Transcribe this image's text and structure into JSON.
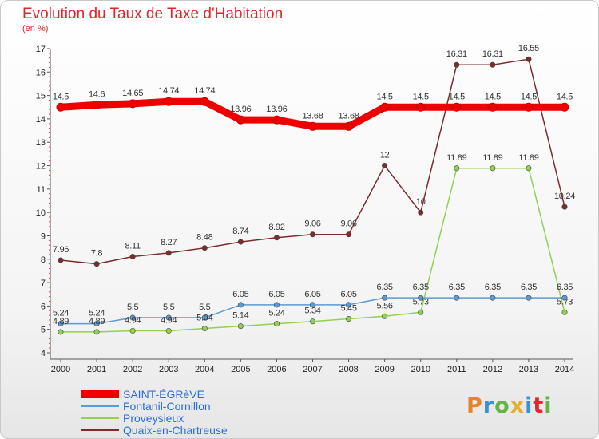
{
  "title": "Evolution du Taux de Taxe d'Habitation",
  "subtitle": "(en %)",
  "logo": {
    "text": "Proxiti",
    "colors": [
      "#e8832a",
      "#3d8fd6",
      "#62b542",
      "#e8b02a",
      "#3d8fd6",
      "#e0262b",
      "#62b542"
    ]
  },
  "chart_data": {
    "type": "line",
    "x": [
      "2000",
      "2001",
      "2002",
      "2003",
      "2004",
      "2005",
      "2006",
      "2007",
      "2008",
      "2009",
      "2010",
      "2011",
      "2012",
      "2013",
      "2014"
    ],
    "ylim": [
      4,
      17
    ],
    "yticks": [
      "4",
      "5",
      "6",
      "7",
      "8",
      "9",
      "10",
      "11",
      "12",
      "13",
      "14",
      "15",
      "16",
      "17"
    ],
    "grid": false,
    "legend": "bottom-left",
    "series": [
      {
        "name": "SAINT-ÉGRèVE",
        "color": "#ee0000",
        "values": [
          14.5,
          14.6,
          14.65,
          14.74,
          14.74,
          13.96,
          13.96,
          13.68,
          13.68,
          14.5,
          14.5,
          14.5,
          14.5,
          14.5,
          14.5
        ],
        "labels": [
          "14.5",
          "14.6",
          "14.65",
          "14.74",
          "14.74",
          "13.96",
          "13.96",
          "13.68",
          "13.68",
          "14.5",
          "14.5",
          "14.5",
          "14.5",
          "14.5",
          "14.5"
        ]
      },
      {
        "name": "Fontanil-Cornillon",
        "color": "#5b9bd5",
        "values": [
          5.24,
          5.24,
          5.5,
          5.5,
          5.5,
          6.05,
          6.05,
          6.05,
          6.05,
          6.35,
          6.35,
          6.35,
          6.35,
          6.35,
          6.35
        ],
        "labels": [
          "5.24",
          "5.24",
          "5.5",
          "5.5",
          "5.5",
          "6.05",
          "6.05",
          "6.05",
          "6.05",
          "6.35",
          "6.35",
          "6.35",
          "6.35",
          "6.35",
          "6.35"
        ]
      },
      {
        "name": "Proveysieux",
        "color": "#92d050",
        "values": [
          4.89,
          4.89,
          4.94,
          4.94,
          5.04,
          5.14,
          5.24,
          5.34,
          5.45,
          5.56,
          5.73,
          11.89,
          11.89,
          11.89,
          5.73
        ],
        "labels": [
          "4.89",
          "4.89",
          "4.94",
          "4.94",
          "5.04",
          "5.14",
          "5.24",
          "5.34",
          "5.45",
          "5.56",
          "5.73",
          "11.89",
          "11.89",
          "11.89",
          "5.73"
        ]
      },
      {
        "name": "Quaix-en-Chartreuse",
        "color": "#7b2c2c",
        "values": [
          7.96,
          7.8,
          8.11,
          8.27,
          8.48,
          8.74,
          8.92,
          9.06,
          9.06,
          12,
          10,
          16.31,
          16.31,
          16.55,
          10.24
        ],
        "labels": [
          "7.96",
          "7.8",
          "8.11",
          "8.27",
          "8.48",
          "8.74",
          "8.92",
          "9.06",
          "9.06",
          "12",
          "10",
          "16.31",
          "16.31",
          "16.55",
          "10.24"
        ]
      }
    ]
  }
}
